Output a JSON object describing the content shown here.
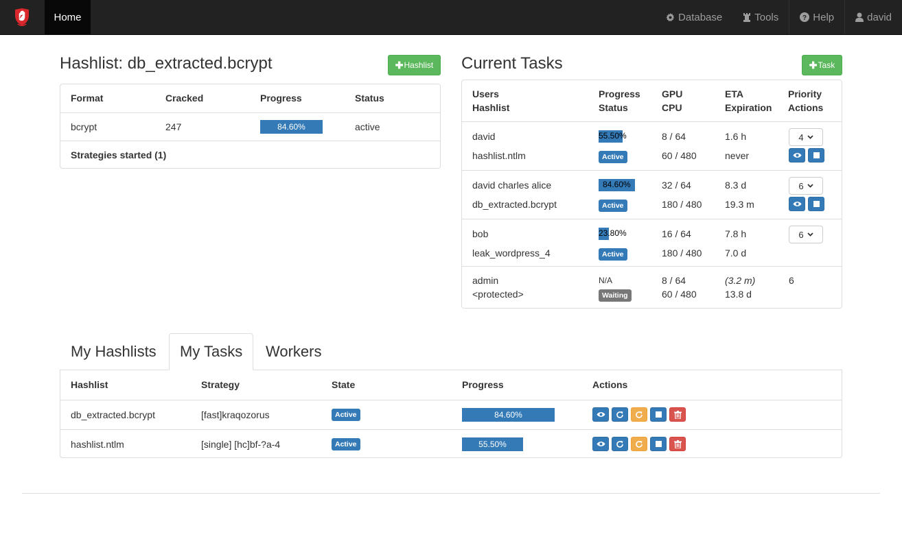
{
  "nav": {
    "home": "Home",
    "database": "Database",
    "tools": "Tools",
    "help": "Help",
    "user": "david"
  },
  "hashlist": {
    "title": "Hashlist: db_extracted.bcrypt",
    "add_button": "Hashlist",
    "headers": [
      "Format",
      "Cracked",
      "Progress",
      "Status"
    ],
    "row": {
      "format": "bcrypt",
      "cracked": "247",
      "progress": "84.60%",
      "progress_value": 84.6,
      "status": "active"
    },
    "strategies": "Strategies started (1)"
  },
  "tasks": {
    "title": "Current Tasks",
    "add_button": "Task",
    "headers": {
      "users": "Users",
      "hashlist": "Hashlist",
      "progress": "Progress",
      "status": "Status",
      "gpu": "GPU",
      "cpu": "CPU",
      "eta": "ETA",
      "expiration": "Expiration",
      "priority": "Priority",
      "actions": "Actions"
    },
    "rows": [
      {
        "users": "david",
        "hashlist": "hashlist.ntlm",
        "progress": "55.50%",
        "progress_value": 55.5,
        "status": "Active",
        "gpu": "8 / 64",
        "cpu": "60 / 480",
        "eta": "1.6 h",
        "expiration": "never",
        "priority": "4"
      },
      {
        "users": "david charles alice",
        "hashlist": "db_extracted.bcrypt",
        "progress": "84.60%",
        "progress_value": 84.6,
        "status": "Active",
        "gpu": "32 / 64",
        "cpu": "180 / 480",
        "eta": "8.3 d",
        "expiration": "19.3 m",
        "priority": "6"
      },
      {
        "users": "bob",
        "hashlist": "leak_wordpress_4",
        "progress": "23.80%",
        "progress_value": 23.8,
        "status": "Active",
        "gpu": "16 / 64",
        "cpu": "180 / 480",
        "eta": "7.8 h",
        "expiration": "7.0 d",
        "priority": "6"
      },
      {
        "users": "admin",
        "hashlist": "<protected>",
        "progress": "N/A",
        "status": "Waiting",
        "gpu": "8 / 64",
        "cpu": "60 / 480",
        "eta": "(3.2 m)",
        "expiration": "13.8 d",
        "priority": "6"
      }
    ]
  },
  "tabs": [
    "My Hashlists",
    "My Tasks",
    "Workers"
  ],
  "my_tasks": {
    "headers": [
      "Hashlist",
      "Strategy",
      "State",
      "Progress",
      "Actions"
    ],
    "rows": [
      {
        "hashlist": "db_extracted.bcrypt",
        "strategy": "[fast]kraqozorus",
        "state": "Active",
        "progress": "84.60%",
        "progress_value": 84.6
      },
      {
        "hashlist": "hashlist.ntlm",
        "strategy": "[single] [hc]bf-?a-4",
        "state": "Active",
        "progress": "55.50%",
        "progress_value": 55.5
      }
    ]
  },
  "colors": {
    "primary": "#337ab7",
    "success": "#5cb85c",
    "warning": "#f0ad4e",
    "danger": "#d9534f",
    "navbar": "#222222"
  }
}
